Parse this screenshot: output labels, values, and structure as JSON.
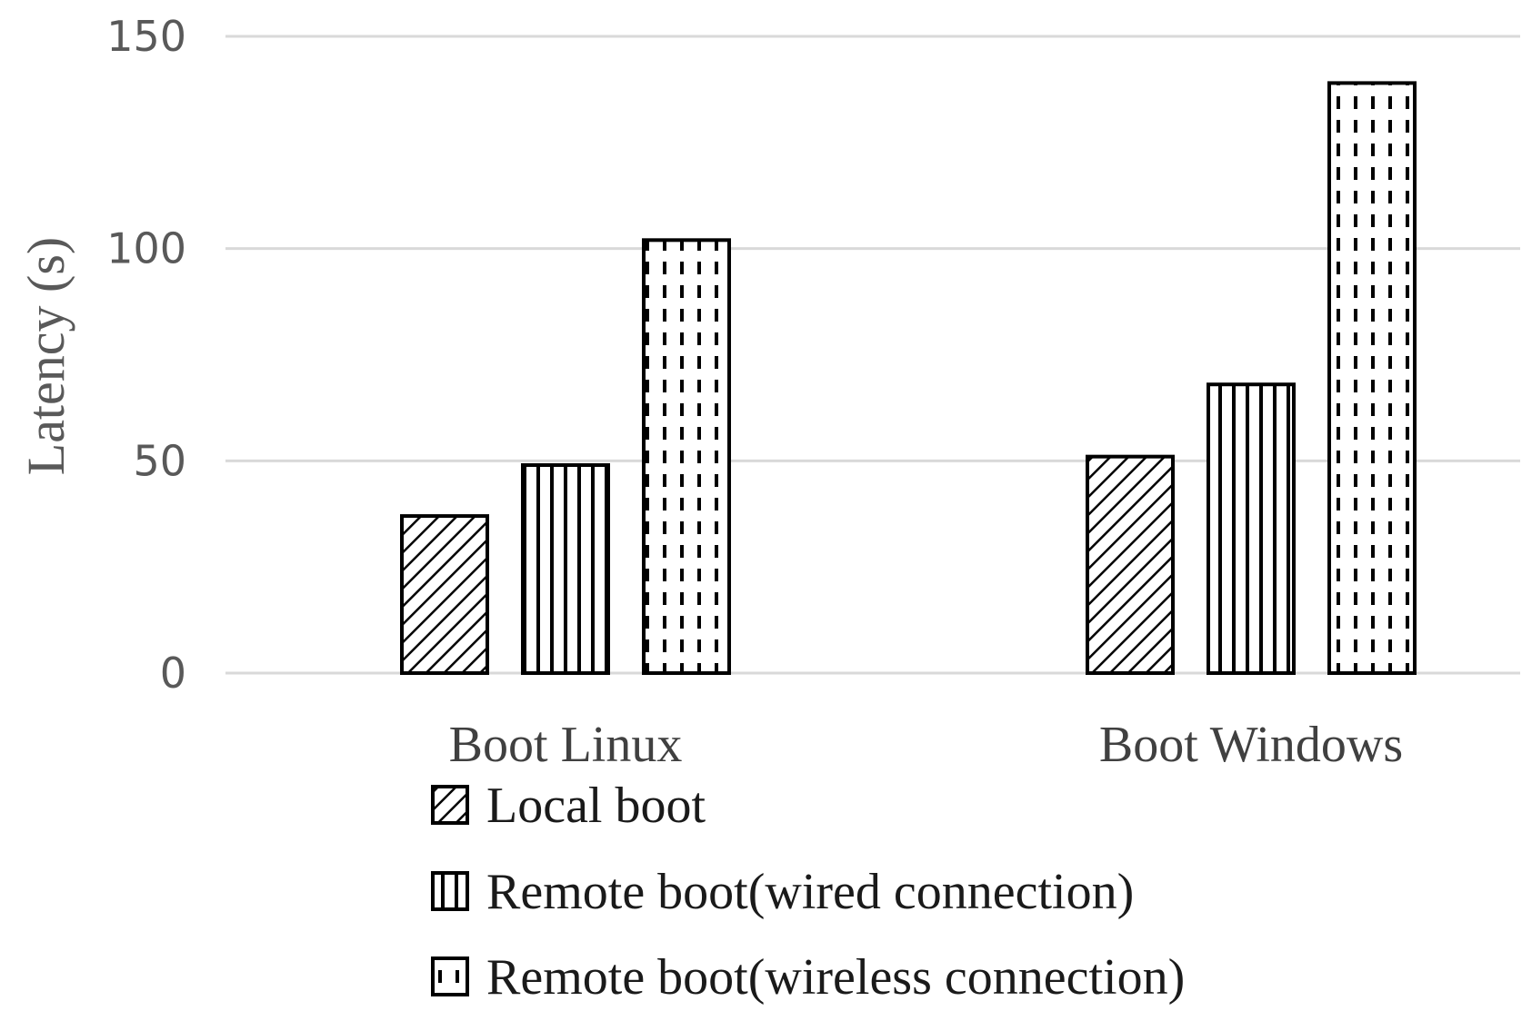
{
  "chart_data": {
    "type": "bar",
    "title": "",
    "xlabel": "",
    "ylabel": "Latency (s)",
    "ylim": [
      0,
      150
    ],
    "yticks": [
      0,
      50,
      100,
      150
    ],
    "grid": true,
    "legend_position": "bottom-center",
    "categories": [
      "Boot Linux",
      "Boot Windows"
    ],
    "series": [
      {
        "name": "Local boot",
        "pattern": "diagonal-hatch",
        "values": [
          37,
          51
        ]
      },
      {
        "name": "Remote boot(wired connection)",
        "pattern": "vertical-lines",
        "values": [
          49,
          68
        ]
      },
      {
        "name": "Remote boot(wireless connection)",
        "pattern": "dashed-vertical-lines",
        "values": [
          102,
          139
        ]
      }
    ]
  }
}
